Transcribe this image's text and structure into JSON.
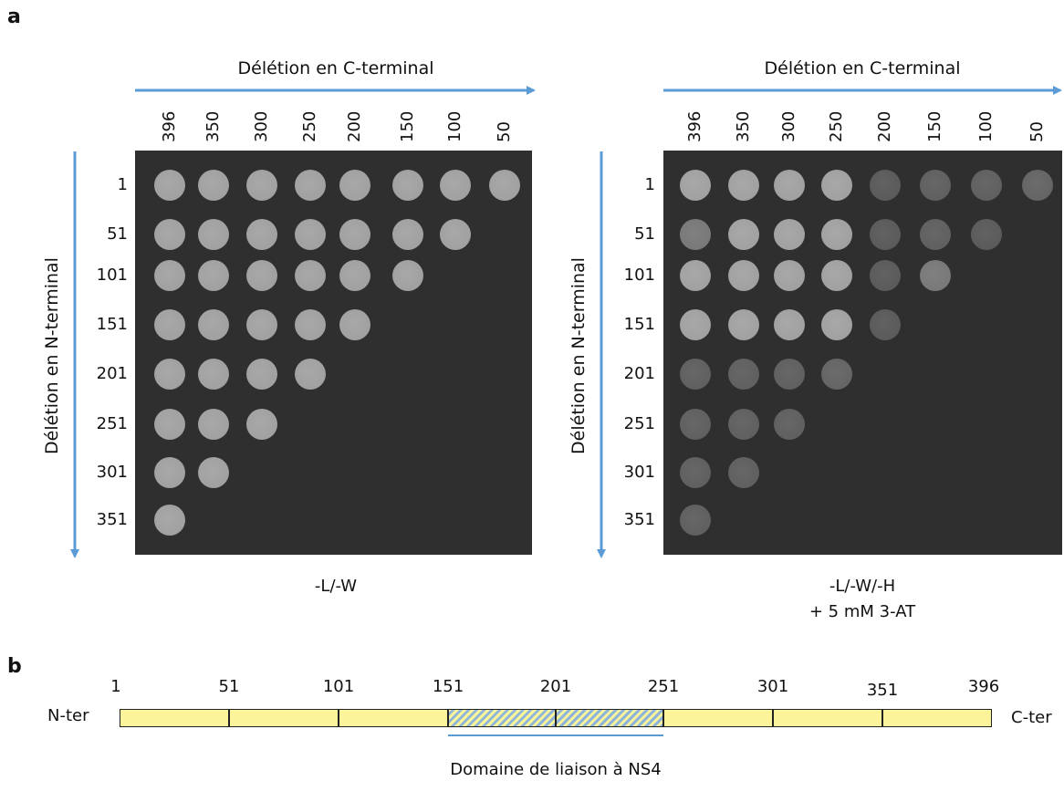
{
  "panel_a": {
    "letter": "a",
    "c_axis_title": "Délétion en C-terminal",
    "n_axis_title": "Délétion en N-terminal",
    "columns": [
      "396",
      "350",
      "300",
      "250",
      "200",
      "150",
      "100",
      "50"
    ],
    "rows": [
      "1",
      "51",
      "101",
      "151",
      "201",
      "251",
      "301",
      "351"
    ],
    "left_condition": "-L/-W",
    "right_condition_line1": "-L/-W/-H",
    "right_condition_line2": "+ 5 mM  3-AT",
    "arrow_color": "#5b9bd5",
    "plate_color": "#2f2f2f",
    "left_growth": [
      [
        1,
        1,
        1,
        1,
        1,
        1,
        1,
        1
      ],
      [
        1,
        1,
        1,
        1,
        1,
        1,
        1,
        0
      ],
      [
        1,
        1,
        1,
        1,
        1,
        1,
        0,
        0
      ],
      [
        1,
        1,
        1,
        1,
        1,
        0,
        0,
        0
      ],
      [
        1,
        1,
        1,
        1,
        0,
        0,
        0,
        0
      ],
      [
        1,
        1,
        1,
        0,
        0,
        0,
        0,
        0
      ],
      [
        1,
        1,
        0,
        0,
        0,
        0,
        0,
        0
      ],
      [
        1,
        0,
        0,
        0,
        0,
        0,
        0,
        0
      ]
    ],
    "right_growth": [
      [
        1,
        1,
        1,
        1,
        0.3,
        0.35,
        0.35,
        0.4
      ],
      [
        0.6,
        1,
        1,
        1,
        0.3,
        0.35,
        0.3,
        0
      ],
      [
        1,
        1,
        1,
        1,
        0.3,
        0.6,
        0,
        0
      ],
      [
        1,
        1,
        1,
        1,
        0.3,
        0,
        0,
        0
      ],
      [
        0.35,
        0.35,
        0.35,
        0.4,
        0,
        0,
        0,
        0
      ],
      [
        0.35,
        0.35,
        0.35,
        0,
        0,
        0,
        0,
        0
      ],
      [
        0.35,
        0.35,
        0,
        0,
        0,
        0,
        0,
        0
      ],
      [
        0.35,
        0,
        0,
        0,
        0,
        0,
        0,
        0
      ]
    ]
  },
  "panel_b": {
    "letter": "b",
    "n_ter": "N-ter",
    "c_ter": "C-ter",
    "positions": [
      "1",
      "51",
      "101",
      "151",
      "201",
      "251",
      "301",
      "351",
      "396"
    ],
    "domain_label": "Domaine de liaison à NS4",
    "bar_color": "#fbf49a",
    "hatch_color": "#8fb6d8"
  }
}
